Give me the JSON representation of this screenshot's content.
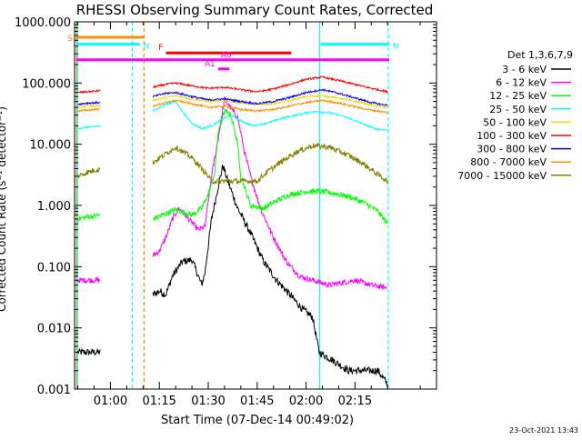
{
  "chart_data": {
    "type": "line",
    "title": "RHESSI Observing Summary Count Rates, Corrected",
    "xlabel": "Start Time (07-Dec-14 00:49:02)",
    "ylabel": "Corrected Count Rate (s⁻¹ detector⁻¹)",
    "yscale": "log",
    "ylim": [
      0.001,
      1000
    ],
    "xlim_minutes": [
      49.0,
      160.0
    ],
    "x_ticks": [
      {
        "label": "01:00",
        "minutes": 60
      },
      {
        "label": "01:15",
        "minutes": 75
      },
      {
        "label": "01:30",
        "minutes": 90
      },
      {
        "label": "01:45",
        "minutes": 105
      },
      {
        "label": "02:00",
        "minutes": 120
      },
      {
        "label": "02:15",
        "minutes": 135
      }
    ],
    "y_ticks": [
      {
        "label": "1000.000",
        "value": 1000
      },
      {
        "label": "100.000",
        "value": 100
      },
      {
        "label": "10.000",
        "value": 10
      },
      {
        "label": "1.000",
        "value": 1
      },
      {
        "label": "0.100",
        "value": 0.1
      },
      {
        "label": "0.010",
        "value": 0.01
      },
      {
        "label": "0.001",
        "value": 0.001
      }
    ],
    "legend_title": "Det 1,3,6,7,9",
    "series": [
      {
        "name": "3 - 6 keV",
        "color": "#000000",
        "points": [
          [
            50,
            0.004
          ],
          [
            53,
            0.004
          ],
          [
            57,
            0.004
          ],
          [
            73,
            0.035
          ],
          [
            75,
            0.04
          ],
          [
            77,
            0.035
          ],
          [
            79,
            0.07
          ],
          [
            82,
            0.12
          ],
          [
            85,
            0.13
          ],
          [
            88,
            0.05
          ],
          [
            89,
            0.08
          ],
          [
            91,
            0.6
          ],
          [
            93,
            2.0
          ],
          [
            94.5,
            4.5
          ],
          [
            96,
            2.5
          ],
          [
            99,
            0.9
          ],
          [
            103,
            0.35
          ],
          [
            107,
            0.12
          ],
          [
            111,
            0.06
          ],
          [
            115,
            0.035
          ],
          [
            119,
            0.02
          ],
          [
            122,
            0.015
          ],
          [
            124,
            0.004
          ],
          [
            128,
            0.003
          ],
          [
            133,
            0.002
          ],
          [
            138,
            0.002
          ],
          [
            142,
            0.002
          ],
          [
            145,
            0.0012
          ]
        ]
      },
      {
        "name": "6 - 12 keV",
        "color": "#ff00ff",
        "points": [
          [
            50,
            0.06
          ],
          [
            53,
            0.06
          ],
          [
            57,
            0.06
          ],
          [
            73,
            0.15
          ],
          [
            75,
            0.18
          ],
          [
            77,
            0.3
          ],
          [
            79,
            0.6
          ],
          [
            81,
            0.9
          ],
          [
            84,
            0.6
          ],
          [
            87,
            0.4
          ],
          [
            89,
            0.45
          ],
          [
            91,
            3.0
          ],
          [
            93,
            12
          ],
          [
            95,
            55
          ],
          [
            97,
            38
          ],
          [
            99,
            28
          ],
          [
            101,
            8
          ],
          [
            103,
            3
          ],
          [
            106,
            0.9
          ],
          [
            110,
            0.3
          ],
          [
            114,
            0.12
          ],
          [
            118,
            0.07
          ],
          [
            122,
            0.06
          ],
          [
            127,
            0.05
          ],
          [
            135,
            0.06
          ],
          [
            140,
            0.05
          ],
          [
            145,
            0.045
          ]
        ]
      },
      {
        "name": "12 - 25 keV",
        "color": "#00ff00",
        "points": [
          [
            50,
            0.6
          ],
          [
            53,
            0.65
          ],
          [
            57,
            0.7
          ],
          [
            73,
            0.6
          ],
          [
            76,
            0.7
          ],
          [
            80,
            0.85
          ],
          [
            85,
            0.7
          ],
          [
            88,
            0.9
          ],
          [
            90,
            1.5
          ],
          [
            92,
            3.5
          ],
          [
            93,
            15
          ],
          [
            95,
            35
          ],
          [
            97,
            30
          ],
          [
            99,
            10
          ],
          [
            100,
            3
          ],
          [
            103,
            1.0
          ],
          [
            107,
            0.9
          ],
          [
            111,
            1.2
          ],
          [
            115,
            1.5
          ],
          [
            120,
            1.7
          ],
          [
            124,
            1.7
          ],
          [
            128,
            1.6
          ],
          [
            133,
            1.4
          ],
          [
            138,
            1.1
          ],
          [
            142,
            0.8
          ],
          [
            145,
            0.5
          ]
        ]
      },
      {
        "name": "25 - 50 keV",
        "color": "#00ffff",
        "points": [
          [
            50,
            18
          ],
          [
            53,
            19
          ],
          [
            57,
            20
          ],
          [
            73,
            35
          ],
          [
            77,
            45
          ],
          [
            80,
            50
          ],
          [
            82,
            35
          ],
          [
            85,
            22
          ],
          [
            88,
            18
          ],
          [
            91,
            20
          ],
          [
            94,
            25
          ],
          [
            97,
            30
          ],
          [
            100,
            24
          ],
          [
            104,
            20
          ],
          [
            108,
            22
          ],
          [
            112,
            26
          ],
          [
            117,
            30
          ],
          [
            122,
            34
          ],
          [
            127,
            33
          ],
          [
            132,
            28
          ],
          [
            137,
            22
          ],
          [
            141,
            18
          ],
          [
            145,
            17
          ]
        ]
      },
      {
        "name": "50 - 100 keV",
        "color": "#ffd700",
        "points": [
          [
            50,
            40
          ],
          [
            53,
            42
          ],
          [
            57,
            43
          ],
          [
            73,
            52
          ],
          [
            77,
            58
          ],
          [
            80,
            62
          ],
          [
            85,
            55
          ],
          [
            90,
            50
          ],
          [
            95,
            52
          ],
          [
            100,
            47
          ],
          [
            105,
            44
          ],
          [
            110,
            46
          ],
          [
            115,
            52
          ],
          [
            120,
            60
          ],
          [
            125,
            62
          ],
          [
            130,
            57
          ],
          [
            135,
            50
          ],
          [
            140,
            44
          ],
          [
            145,
            40
          ]
        ]
      },
      {
        "name": "100 - 300 keV",
        "color": "#ff0000",
        "points": [
          [
            50,
            70
          ],
          [
            53,
            72
          ],
          [
            57,
            75
          ],
          [
            73,
            85
          ],
          [
            77,
            95
          ],
          [
            80,
            100
          ],
          [
            85,
            90
          ],
          [
            90,
            82
          ],
          [
            95,
            85
          ],
          [
            100,
            78
          ],
          [
            105,
            72
          ],
          [
            110,
            80
          ],
          [
            115,
            95
          ],
          [
            120,
            115
          ],
          [
            125,
            125
          ],
          [
            130,
            110
          ],
          [
            135,
            95
          ],
          [
            140,
            82
          ],
          [
            145,
            72
          ]
        ]
      },
      {
        "name": "300 - 800 keV",
        "color": "#0000ff",
        "points": [
          [
            50,
            45
          ],
          [
            53,
            47
          ],
          [
            57,
            48
          ],
          [
            73,
            60
          ],
          [
            77,
            68
          ],
          [
            80,
            70
          ],
          [
            85,
            60
          ],
          [
            90,
            53
          ],
          [
            95,
            55
          ],
          [
            100,
            50
          ],
          [
            105,
            46
          ],
          [
            110,
            50
          ],
          [
            115,
            58
          ],
          [
            120,
            70
          ],
          [
            125,
            78
          ],
          [
            130,
            68
          ],
          [
            135,
            57
          ],
          [
            140,
            48
          ],
          [
            145,
            43
          ]
        ]
      },
      {
        "name": "800 - 7000 keV",
        "color": "#ff8c00",
        "points": [
          [
            50,
            35
          ],
          [
            53,
            36
          ],
          [
            57,
            38
          ],
          [
            73,
            42
          ],
          [
            77,
            48
          ],
          [
            80,
            52
          ],
          [
            85,
            46
          ],
          [
            90,
            40
          ],
          [
            95,
            42
          ],
          [
            100,
            37
          ],
          [
            105,
            35
          ],
          [
            110,
            37
          ],
          [
            115,
            42
          ],
          [
            120,
            48
          ],
          [
            125,
            52
          ],
          [
            130,
            47
          ],
          [
            135,
            41
          ],
          [
            140,
            36
          ],
          [
            145,
            33
          ]
        ]
      },
      {
        "name": "7000 - 15000 keV",
        "color": "#808000",
        "points": [
          [
            50,
            3.0
          ],
          [
            53,
            3.5
          ],
          [
            57,
            4.0
          ],
          [
            73,
            5.0
          ],
          [
            77,
            7.0
          ],
          [
            80,
            9.0
          ],
          [
            85,
            6.0
          ],
          [
            89,
            3.5
          ],
          [
            91,
            2.5
          ],
          [
            95,
            2.5
          ],
          [
            100,
            2.5
          ],
          [
            105,
            2.5
          ],
          [
            108,
            3.5
          ],
          [
            112,
            5.0
          ],
          [
            117,
            7.5
          ],
          [
            122,
            9.5
          ],
          [
            127,
            9.0
          ],
          [
            132,
            7.0
          ],
          [
            137,
            5.0
          ],
          [
            141,
            3.5
          ],
          [
            145,
            2.5
          ]
        ]
      }
    ],
    "flag_bars": [
      {
        "label": "S",
        "color": "#ff8c00",
        "x0": 49.5,
        "x1": 70.5,
        "value": 560
      },
      {
        "label": "N",
        "color": "#00ffff",
        "x0": 49.5,
        "x1": 69.0,
        "value": 430
      },
      {
        "label": "N",
        "color": "#00ffff",
        "x0": 124.5,
        "x1": 145.5,
        "value": 430
      },
      {
        "label": "F",
        "color": "#ff0000",
        "x0": 77.0,
        "x1": 115.5,
        "value": 310
      },
      {
        "label": "A0",
        "color": "#ff00ff",
        "x0": 49.5,
        "x1": 145.5,
        "value": 240
      },
      {
        "label": "A1",
        "color": "#ff00ff",
        "x0": 93.0,
        "x1": 96.5,
        "value": 170
      }
    ],
    "vertical_lines": [
      {
        "minutes": 49.6,
        "color": "#ff8c00",
        "style": "solid"
      },
      {
        "minutes": 49.9,
        "color": "#00ffff",
        "style": "solid"
      },
      {
        "minutes": 66.7,
        "color": "#00ffff",
        "style": "dashed"
      },
      {
        "minutes": 70.3,
        "color": "#ff8c00",
        "style": "dashed"
      },
      {
        "minutes": 124.2,
        "color": "#00ffff",
        "style": "solid"
      },
      {
        "minutes": 145.2,
        "color": "#00ffff",
        "style": "dashed"
      }
    ]
  },
  "footer": {
    "timestamp": "23-Oct-2021 13:43"
  }
}
